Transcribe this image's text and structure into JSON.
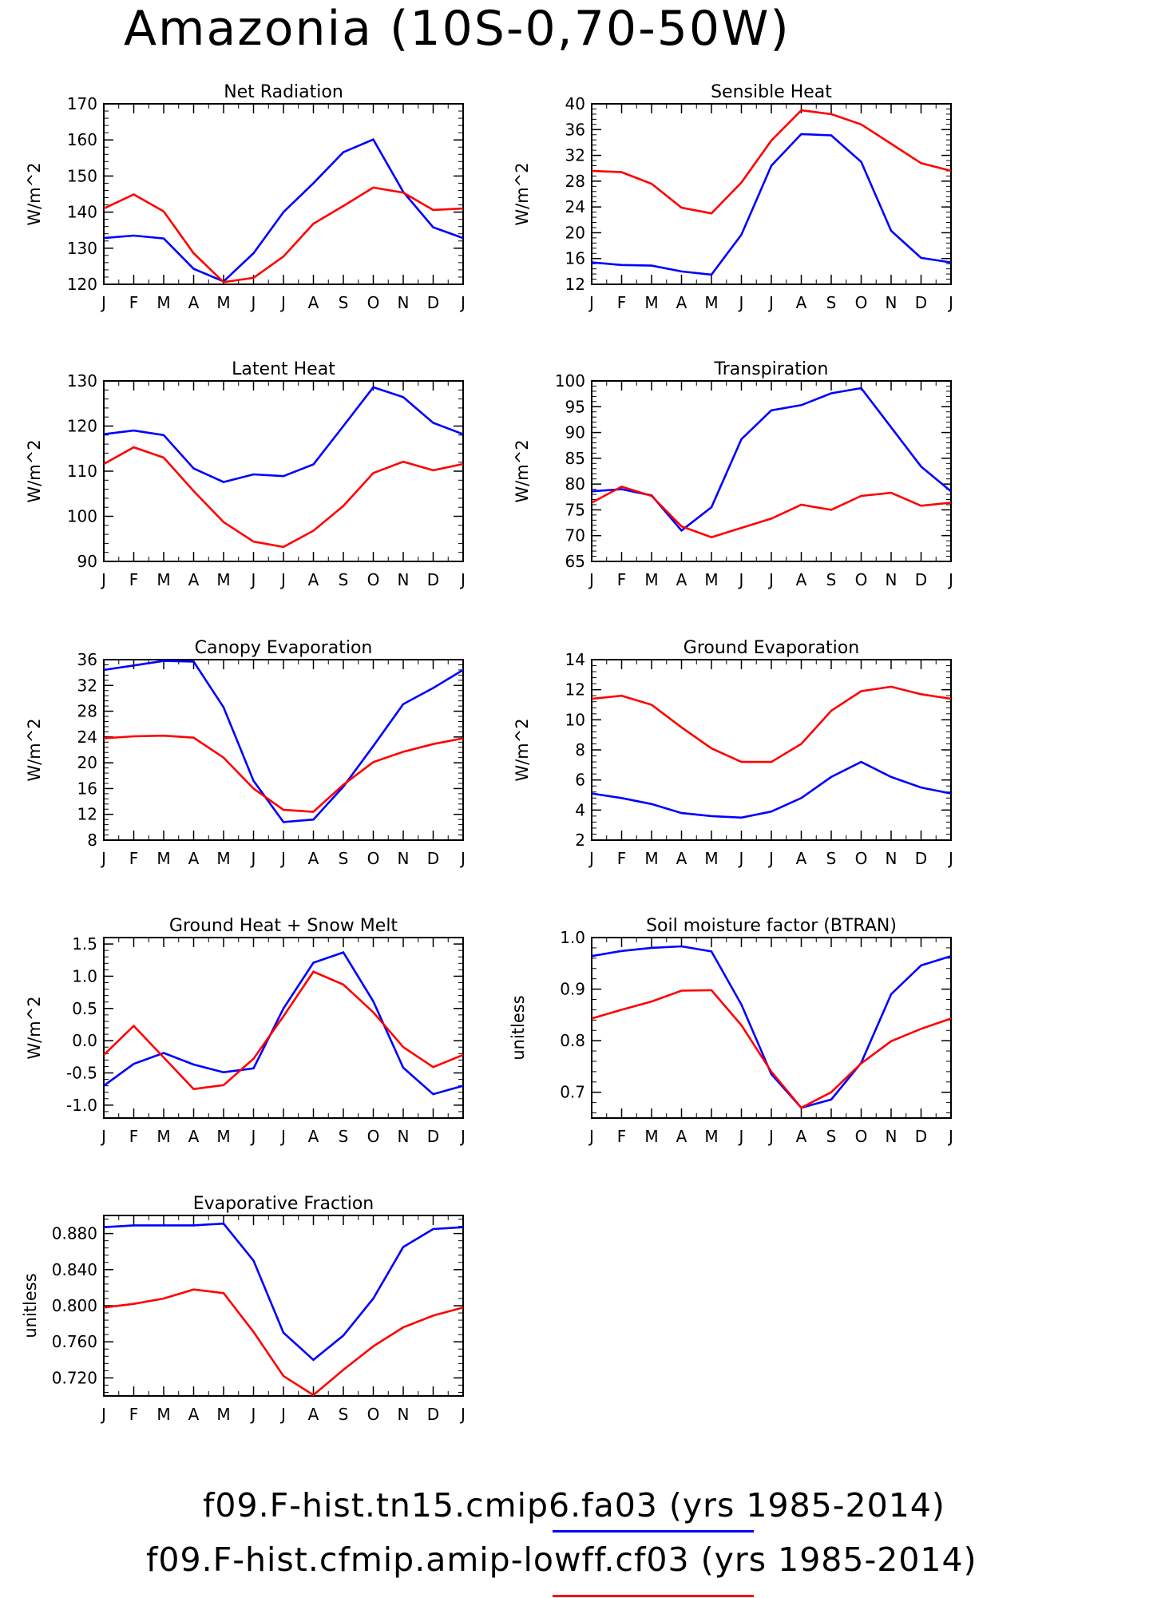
{
  "title": "Amazonia (10S-0,70-50W)",
  "colors": {
    "blue": "#0000ff",
    "red": "#ff0000",
    "axis": "#000000"
  },
  "months": [
    "J",
    "F",
    "M",
    "A",
    "M",
    "J",
    "J",
    "A",
    "S",
    "O",
    "N",
    "D",
    "J"
  ],
  "legend": [
    {
      "label": "f09.F-hist.tn15.cmip6.fa03 (yrs 1985-2014)",
      "color": "#0000ff"
    },
    {
      "label": "f09.F-hist.cfmip.amip-lowff.cf03 (yrs 1985-2014)",
      "color": "#ff0000"
    }
  ],
  "chart_data": [
    {
      "type": "line",
      "title": "Net Radiation",
      "ylabel": "W/m^2",
      "ylim": [
        120,
        170
      ],
      "yticks": [
        120,
        130,
        140,
        150,
        160,
        170
      ],
      "ytick_labels": [
        "120",
        "130",
        "140",
        "150",
        "160",
        "170"
      ],
      "series": [
        {
          "color": "#0000ff",
          "values": [
            132.8,
            133.5,
            132.7,
            124.3,
            120.8,
            128.6,
            140.0,
            148.0,
            156.6,
            160.1,
            145.6,
            135.8,
            132.8
          ]
        },
        {
          "color": "#ff0000",
          "values": [
            141.0,
            144.9,
            140.2,
            128.6,
            120.6,
            121.8,
            127.7,
            136.8,
            141.7,
            146.8,
            145.4,
            140.6,
            141.0
          ]
        }
      ]
    },
    {
      "type": "line",
      "title": "Sensible Heat",
      "ylabel": "W/m^2",
      "ylim": [
        12,
        40
      ],
      "yticks": [
        12,
        16,
        20,
        24,
        28,
        32,
        36,
        40
      ],
      "ytick_labels": [
        "12",
        "16",
        "20",
        "24",
        "28",
        "32",
        "36",
        "40"
      ],
      "series": [
        {
          "color": "#0000ff",
          "values": [
            15.4,
            15.0,
            14.9,
            14.0,
            13.5,
            19.7,
            30.4,
            35.3,
            35.1,
            31.0,
            20.3,
            16.1,
            15.4
          ]
        },
        {
          "color": "#ff0000",
          "values": [
            29.6,
            29.4,
            27.6,
            23.9,
            23.0,
            27.8,
            34.3,
            39.0,
            38.4,
            36.8,
            33.8,
            30.8,
            29.6
          ]
        }
      ]
    },
    {
      "type": "line",
      "title": "Latent Heat",
      "ylabel": "W/m^2",
      "ylim": [
        90,
        130
      ],
      "yticks": [
        90,
        100,
        110,
        120,
        130
      ],
      "ytick_labels": [
        "90",
        "100",
        "110",
        "120",
        "130"
      ],
      "series": [
        {
          "color": "#0000ff",
          "values": [
            118.2,
            119.0,
            118.0,
            110.6,
            107.6,
            109.3,
            108.9,
            111.5,
            120.0,
            128.6,
            126.4,
            120.7,
            118.2
          ]
        },
        {
          "color": "#ff0000",
          "values": [
            111.6,
            115.3,
            113.0,
            105.6,
            98.7,
            94.4,
            93.2,
            96.8,
            102.3,
            109.6,
            112.1,
            110.2,
            111.6
          ]
        }
      ]
    },
    {
      "type": "line",
      "title": "Transpiration",
      "ylabel": "W/m^2",
      "ylim": [
        65,
        100
      ],
      "yticks": [
        65,
        70,
        75,
        80,
        85,
        90,
        95,
        100
      ],
      "ytick_labels": [
        "65",
        "70",
        "75",
        "80",
        "85",
        "90",
        "95",
        "100"
      ],
      "series": [
        {
          "color": "#0000ff",
          "values": [
            78.6,
            79.0,
            77.8,
            71.0,
            75.5,
            88.7,
            94.3,
            95.3,
            97.6,
            98.6,
            91.0,
            83.4,
            78.6
          ]
        },
        {
          "color": "#ff0000",
          "values": [
            76.4,
            79.5,
            77.7,
            71.8,
            69.7,
            71.5,
            73.3,
            76.0,
            75.0,
            77.7,
            78.3,
            75.8,
            76.4
          ]
        }
      ]
    },
    {
      "type": "line",
      "title": "Canopy Evaporation",
      "ylabel": "W/m^2",
      "ylim": [
        8,
        36
      ],
      "yticks": [
        8,
        12,
        16,
        20,
        24,
        28,
        32,
        36
      ],
      "ytick_labels": [
        "8",
        "12",
        "16",
        "20",
        "24",
        "28",
        "32",
        "36"
      ],
      "series": [
        {
          "color": "#0000ff",
          "values": [
            34.4,
            35.1,
            35.8,
            35.7,
            28.6,
            17.2,
            10.8,
            11.2,
            16.3,
            22.6,
            29.1,
            31.6,
            34.4
          ]
        },
        {
          "color": "#ff0000",
          "values": [
            23.8,
            24.1,
            24.2,
            23.9,
            20.8,
            16.0,
            12.7,
            12.4,
            16.6,
            20.1,
            21.7,
            22.9,
            23.8
          ]
        }
      ]
    },
    {
      "type": "line",
      "title": "Ground Evaporation",
      "ylabel": "W/m^2",
      "ylim": [
        2,
        14
      ],
      "yticks": [
        2,
        4,
        6,
        8,
        10,
        12,
        14
      ],
      "ytick_labels": [
        "2",
        "4",
        "6",
        "8",
        "10",
        "12",
        "14"
      ],
      "series": [
        {
          "color": "#0000ff",
          "values": [
            5.1,
            4.8,
            4.4,
            3.8,
            3.6,
            3.5,
            3.9,
            4.8,
            6.2,
            7.2,
            6.2,
            5.5,
            5.1
          ]
        },
        {
          "color": "#ff0000",
          "values": [
            11.4,
            11.6,
            11.0,
            9.5,
            8.1,
            7.2,
            7.2,
            8.4,
            10.6,
            11.9,
            12.2,
            11.7,
            11.4
          ]
        }
      ]
    },
    {
      "type": "line",
      "title": "Ground Heat + Snow Melt",
      "ylabel": "W/m^2",
      "ylim": [
        -1.2,
        1.6
      ],
      "yticks": [
        -1.0,
        -0.5,
        0.0,
        0.5,
        1.0,
        1.5
      ],
      "ytick_labels": [
        "-1.0",
        "-0.5",
        "0.0",
        "0.5",
        "1.0",
        "1.5"
      ],
      "series": [
        {
          "color": "#0000ff",
          "values": [
            -0.7,
            -0.36,
            -0.19,
            -0.37,
            -0.49,
            -0.43,
            0.5,
            1.21,
            1.37,
            0.61,
            -0.42,
            -0.83,
            -0.7
          ]
        },
        {
          "color": "#ff0000",
          "values": [
            -0.22,
            0.23,
            -0.26,
            -0.75,
            -0.69,
            -0.28,
            0.38,
            1.07,
            0.87,
            0.44,
            -0.1,
            -0.41,
            -0.22
          ]
        }
      ]
    },
    {
      "type": "line",
      "title": "Soil moisture factor (BTRAN)",
      "ylabel": "unitless",
      "ylim": [
        0.65,
        1.0
      ],
      "yticks": [
        0.7,
        0.8,
        0.9,
        1.0
      ],
      "ytick_labels": [
        "0.7",
        "0.8",
        "0.9",
        "1.0"
      ],
      "series": [
        {
          "color": "#0000ff",
          "values": [
            0.964,
            0.974,
            0.98,
            0.983,
            0.973,
            0.87,
            0.735,
            0.67,
            0.686,
            0.757,
            0.89,
            0.946,
            0.964
          ]
        },
        {
          "color": "#ff0000",
          "values": [
            0.843,
            0.86,
            0.876,
            0.897,
            0.898,
            0.83,
            0.74,
            0.67,
            0.7,
            0.756,
            0.799,
            0.823,
            0.843
          ]
        }
      ]
    },
    {
      "type": "line",
      "title": "Evaporative Fraction",
      "ylabel": "unitless",
      "ylim": [
        0.7,
        0.9
      ],
      "yticks": [
        0.72,
        0.76,
        0.8,
        0.84,
        0.88
      ],
      "ytick_labels": [
        "0.720",
        "0.760",
        "0.800",
        "0.840",
        "0.880"
      ],
      "series": [
        {
          "color": "#0000ff",
          "values": [
            0.887,
            0.889,
            0.889,
            0.889,
            0.891,
            0.85,
            0.77,
            0.74,
            0.767,
            0.808,
            0.865,
            0.885,
            0.887
          ]
        },
        {
          "color": "#ff0000",
          "values": [
            0.798,
            0.802,
            0.808,
            0.818,
            0.814,
            0.771,
            0.722,
            0.701,
            0.729,
            0.755,
            0.776,
            0.789,
            0.798
          ]
        }
      ]
    }
  ]
}
